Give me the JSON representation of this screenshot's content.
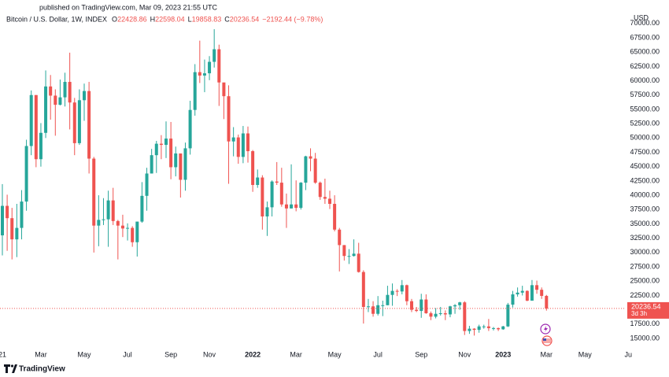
{
  "chart_data": {
    "type": "candlestick",
    "header": "published on TradingView.com, Mar 09, 2023 21:55 UTC",
    "title": "Bitcoin / U.S. Dollar, 1W, INDEX",
    "legend_labels": [
      "O",
      "H",
      "L",
      "C"
    ],
    "change": "−2192.44 (−9.78%)",
    "currency": "USD",
    "countdown": "3d 3h",
    "brand": "TradingView",
    "up_color": "#26a69a",
    "down_color": "#ef5350",
    "open": [
      33000,
      38150,
      36000,
      32300,
      34300,
      38900,
      48600,
      57500,
      46300,
      50900,
      59000,
      57400,
      55800,
      57100,
      59800,
      56200,
      49100,
      56600,
      58200,
      46400,
      34700,
      35700,
      35800,
      39100,
      35500,
      34700,
      34200,
      34300,
      31800,
      35400,
      39900,
      43800,
      47000,
      49000,
      48800,
      49900,
      44900,
      47300,
      42700,
      48200,
      54900,
      61500,
      60900,
      61300,
      63300,
      65500,
      59700,
      57300,
      49400,
      50100,
      46700,
      50800,
      47700,
      41800,
      43100,
      36300,
      37900,
      42400,
      42200,
      38400,
      37700,
      38400,
      37800,
      42200,
      46800,
      46400,
      42200,
      39700,
      39400,
      38500,
      34000,
      31300,
      29400,
      29400,
      29800,
      26600,
      20500,
      20600,
      19300,
      20800,
      20800,
      22600,
      23300,
      23200,
      24300,
      21500,
      20000,
      19800,
      21800,
      19400,
      18800,
      19300,
      19400,
      19200,
      20600,
      20800,
      21300,
      16300,
      16700,
      16500,
      17100,
      17100,
      16800,
      16800,
      16600,
      17100,
      20900,
      22700,
      23000,
      23300,
      21600,
      24300,
      23500,
      22428.86
    ],
    "high": [
      41950,
      40100,
      37800,
      38500,
      40900,
      49700,
      58300,
      57500,
      52600,
      61800,
      61000,
      58500,
      60200,
      61400,
      64900,
      57000,
      58500,
      59500,
      59800,
      46700,
      40000,
      39500,
      40800,
      41300,
      35700,
      36600,
      35100,
      34600,
      35400,
      42300,
      44800,
      48100,
      49500,
      50500,
      52900,
      52800,
      48500,
      47300,
      49200,
      56500,
      62900,
      67000,
      63700,
      64300,
      69000,
      66300,
      59400,
      59200,
      51900,
      50600,
      52100,
      52000,
      47900,
      44500,
      43500,
      38900,
      42600,
      45800,
      44800,
      40300,
      45400,
      42600,
      42300,
      46900,
      48200,
      47400,
      42400,
      42900,
      40800,
      40000,
      34300,
      31300,
      30600,
      32300,
      31700,
      26900,
      21900,
      21500,
      22400,
      21600,
      24200,
      24600,
      23600,
      25200,
      24400,
      21900,
      20500,
      22800,
      22700,
      19700,
      20300,
      20500,
      19900,
      20700,
      21000,
      21400,
      21500,
      17200,
      16800,
      17400,
      17400,
      18400,
      17000,
      16900,
      17200,
      21200,
      23300,
      23900,
      24200,
      23400,
      25200,
      25100,
      23900,
      22598.04
    ],
    "low": [
      29500,
      30300,
      28800,
      29200,
      32300,
      37300,
      47000,
      44900,
      45000,
      50000,
      53200,
      50400,
      55700,
      55500,
      51500,
      47000,
      48800,
      53000,
      43800,
      30000,
      31100,
      34800,
      31000,
      34800,
      28800,
      32700,
      32100,
      31000,
      29300,
      35200,
      37300,
      43800,
      43900,
      46300,
      46500,
      42800,
      43300,
      39600,
      40800,
      47100,
      53900,
      59600,
      58000,
      60100,
      62300,
      55600,
      53300,
      42000,
      46800,
      45500,
      45600,
      45700,
      40600,
      41300,
      34000,
      32900,
      36300,
      41800,
      38000,
      34300,
      37700,
      37200,
      37500,
      40900,
      44200,
      42000,
      39200,
      38500,
      37600,
      33700,
      26700,
      28600,
      28000,
      29300,
      26500,
      17600,
      19600,
      18800,
      19000,
      18900,
      20800,
      20700,
      22400,
      22700,
      20800,
      19600,
      19600,
      18600,
      19300,
      18200,
      18500,
      19000,
      18200,
      18700,
      19300,
      20000,
      15600,
      15800,
      15500,
      16000,
      16700,
      16300,
      16400,
      16300,
      16500,
      17000,
      20400,
      22300,
      22500,
      21500,
      21600,
      22800,
      21900,
      19858.83
    ],
    "close": [
      38150,
      36000,
      32300,
      34300,
      38900,
      48600,
      57500,
      46300,
      50900,
      59000,
      57400,
      55800,
      57100,
      59800,
      56200,
      49100,
      56600,
      58200,
      46400,
      34700,
      35700,
      35800,
      39100,
      35500,
      34700,
      34200,
      34300,
      31800,
      35400,
      39900,
      43800,
      47000,
      49000,
      48800,
      49900,
      44900,
      47300,
      42700,
      48200,
      54900,
      61500,
      60900,
      61300,
      63300,
      65500,
      59700,
      57300,
      49400,
      50100,
      46700,
      50800,
      47700,
      41800,
      43100,
      36300,
      37900,
      42400,
      42200,
      38400,
      37700,
      38400,
      37800,
      42200,
      46800,
      46400,
      42200,
      39700,
      39400,
      38500,
      34000,
      31300,
      29400,
      29400,
      29800,
      26600,
      20500,
      20600,
      19300,
      20800,
      20800,
      22600,
      23300,
      23200,
      24300,
      21500,
      20000,
      19800,
      21800,
      19400,
      18800,
      19300,
      19400,
      19200,
      20600,
      20800,
      21300,
      16300,
      16700,
      16500,
      17100,
      17100,
      16800,
      16800,
      16600,
      17100,
      20900,
      22700,
      23000,
      23300,
      21600,
      24300,
      23500,
      22428.98,
      20236.54
    ],
    "xlim": [
      -0.49,
      125.7
    ],
    "xticks": [
      {
        "value": 0,
        "label": "21"
      },
      {
        "value": 8,
        "label": "Mar"
      },
      {
        "value": 17,
        "label": "May"
      },
      {
        "value": 26,
        "label": "Jul"
      },
      {
        "value": 35,
        "label": "Sep"
      },
      {
        "value": 43,
        "label": "Nov"
      },
      {
        "value": 52,
        "label": "2022"
      },
      {
        "value": 61,
        "label": "Mar"
      },
      {
        "value": 69,
        "label": "May"
      },
      {
        "value": 78,
        "label": "Jul"
      },
      {
        "value": 87,
        "label": "Sep"
      },
      {
        "value": 96,
        "label": "Nov"
      },
      {
        "value": 104,
        "label": "2023"
      },
      {
        "value": 113,
        "label": "Mar"
      },
      {
        "value": 121,
        "label": "May"
      },
      {
        "value": 130,
        "label": "Ju"
      }
    ],
    "ylim": [
      13626,
      72173
    ],
    "yticks": [
      {
        "value": 15000,
        "label": "15000.00"
      },
      {
        "value": 17500,
        "label": "17500.00"
      },
      {
        "value": 20000,
        "label": "20000.00"
      },
      {
        "value": 22500,
        "label": "22500.00"
      },
      {
        "value": 25000,
        "label": "25000.00"
      },
      {
        "value": 27500,
        "label": "27500.00"
      },
      {
        "value": 30000,
        "label": "30000.00"
      },
      {
        "value": 32500,
        "label": "32500.00"
      },
      {
        "value": 35000,
        "label": "35000.00"
      },
      {
        "value": 37500,
        "label": "37500.00"
      },
      {
        "value": 40000,
        "label": "40000.00"
      },
      {
        "value": 42500,
        "label": "42500.00"
      },
      {
        "value": 45000,
        "label": "45000.00"
      },
      {
        "value": 47500,
        "label": "47500.00"
      },
      {
        "value": 50000,
        "label": "50000.00"
      },
      {
        "value": 52500,
        "label": "52500.00"
      },
      {
        "value": 55000,
        "label": "55000.00"
      },
      {
        "value": 57500,
        "label": "57500.00"
      },
      {
        "value": 60000,
        "label": "60000.00"
      },
      {
        "value": 62500,
        "label": "62500.00"
      },
      {
        "value": 65000,
        "label": "65000.00"
      },
      {
        "value": 67500,
        "label": "67500.00"
      },
      {
        "value": 70000,
        "label": "70000.00"
      }
    ]
  }
}
